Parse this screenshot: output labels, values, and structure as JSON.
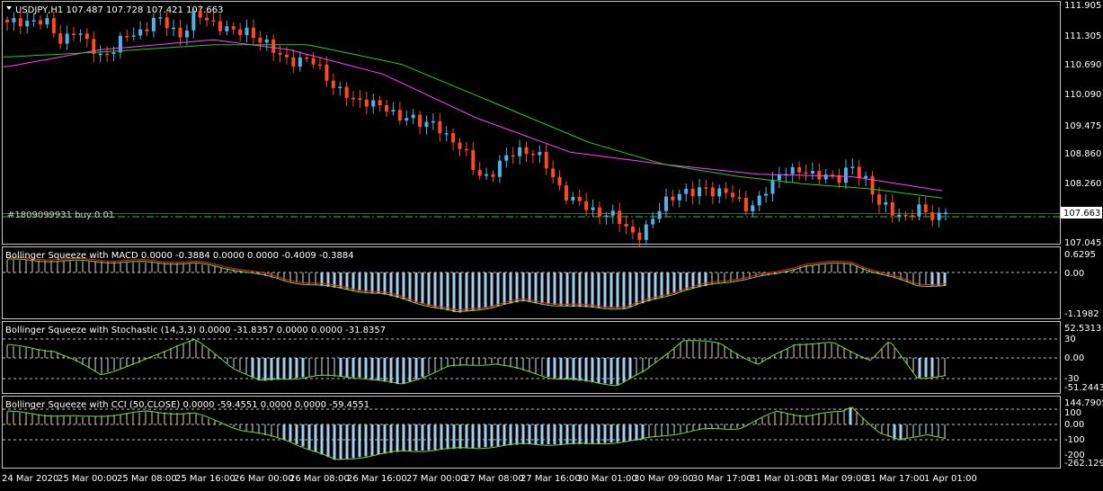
{
  "main": {
    "symbol_header": "USDJPY,H1  107.487 107.728 107.421 107.663",
    "order_label": "#1809099931 buy 0.01",
    "price_ticks": [
      "111.905",
      "111.305",
      "110.690",
      "110.090",
      "109.475",
      "108.860",
      "108.260",
      "107.663",
      "107.045"
    ],
    "current_price": "107.663"
  },
  "panels": [
    {
      "title": "Bollinger Squeeze with MACD 0.0000 -0.3884 0.0000 0.0000 -0.4009 -0.3884",
      "ticks": [
        "0.6295",
        "0.00",
        "-1.1982"
      ]
    },
    {
      "title": "Bollinger Squeeze with Stochastic (14,3,3) 0.0000 -31.8357 0.0000 0.0000 -31.8357",
      "ticks": [
        "52.5313",
        "30",
        "0.00",
        "-30",
        "-51.2443"
      ]
    },
    {
      "title": "Bollinger Squeeze with CCI (50,CLOSE) 0.0000 -59.4551 0.0000 0.0000 -59.4551",
      "ticks": [
        "144.7905",
        "100",
        "0.00",
        "-100",
        "-200",
        "-262.1293"
      ]
    }
  ],
  "time_labels": [
    "24 Mar 2020",
    "25 Mar 00:00",
    "25 Mar 08:00",
    "25 Mar 16:00",
    "26 Mar 00:00",
    "26 Mar 08:00",
    "26 Mar 16:00",
    "27 Mar 00:00",
    "27 Mar 08:00",
    "27 Mar 16:00",
    "30 Mar 01:00",
    "30 Mar 09:00",
    "30 Mar 17:00",
    "31 Mar 01:00",
    "31 Mar 09:00",
    "31 Mar 17:00",
    "1 Apr 01:00"
  ],
  "colors": {
    "bull": "#4fb3e8",
    "bear": "#ff4a1c",
    "ma_fast": "#ff40ff",
    "ma_slow": "#28c828",
    "hist_pos": "#a8d8f0",
    "hist_neg": "#9fd0ee",
    "signal_red": "#ff2020",
    "line_green": "#7cd838",
    "grid_text": "#ffffff",
    "frame": "#c8c8c8",
    "order_line": "#20d020"
  },
  "chart_data": [
    {
      "type": "candlestick",
      "title": "USDJPY,H1",
      "ylim": [
        107.045,
        111.905
      ],
      "close_approx": [
        111.5,
        111.6,
        111.6,
        111.5,
        111.2,
        111.4,
        111.1,
        110.9,
        111.0,
        111.3,
        111.4,
        111.6,
        111.5,
        111.3,
        111.7,
        111.6,
        111.5,
        111.3,
        111.4,
        111.2,
        110.9,
        110.8,
        110.8,
        110.7,
        110.4,
        110.1,
        109.9,
        110.0,
        109.8,
        109.6,
        109.7,
        109.4,
        109.5,
        109.2,
        108.9,
        108.5,
        108.4,
        108.7,
        109.0,
        108.9,
        108.7,
        108.3,
        107.9,
        107.8,
        107.7,
        107.6,
        107.4,
        107.2,
        107.4,
        107.9,
        108.1,
        108.0,
        108.2,
        108.1,
        108.0,
        107.8,
        107.9,
        108.2,
        108.6,
        108.5,
        108.4,
        108.5,
        108.3,
        108.6,
        108.4,
        107.8,
        107.7,
        107.6,
        107.7,
        107.6,
        107.663
      ],
      "series": [
        {
          "name": "MA fast",
          "color": "#ff40ff"
        },
        {
          "name": "MA slow",
          "color": "#28c828"
        }
      ],
      "order_line": 107.58
    },
    {
      "type": "bar",
      "title": "Bollinger Squeeze with MACD",
      "ylim": [
        -1.1982,
        0.6295
      ],
      "histogram_last": -0.3884,
      "signal_last": -0.4009
    },
    {
      "type": "bar",
      "title": "Bollinger Squeeze with Stochastic (14,3,3)",
      "ylim": [
        -51.2443,
        52.5313
      ],
      "last": -31.8357
    },
    {
      "type": "bar",
      "title": "Bollinger Squeeze with CCI (50,CLOSE)",
      "ylim": [
        -262.1293,
        144.7905
      ],
      "last": -59.4551
    }
  ]
}
